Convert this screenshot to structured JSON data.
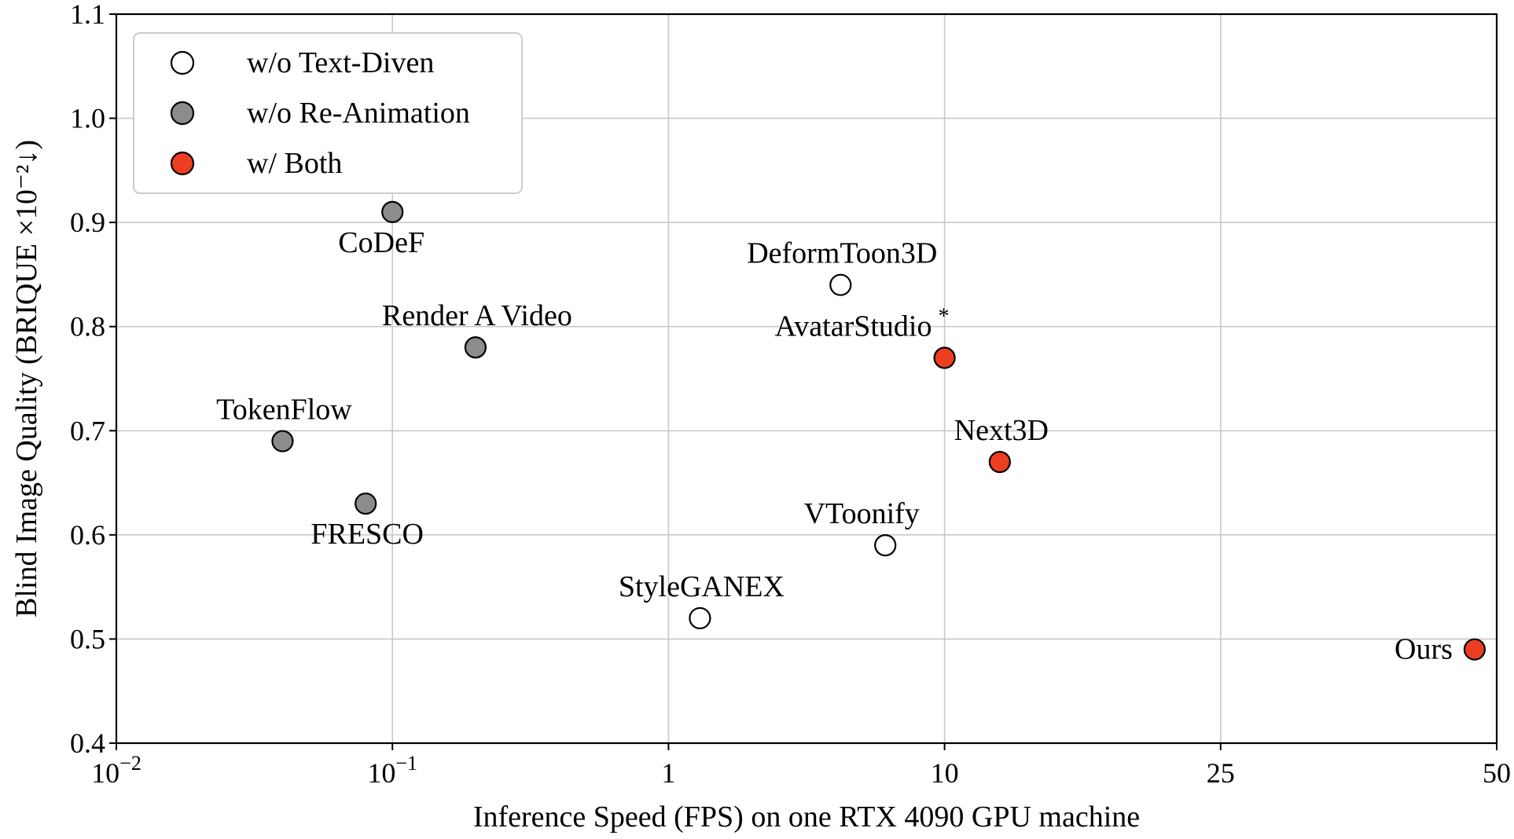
{
  "chart_data": {
    "type": "scatter",
    "xlabel": "Inference Speed (FPS) on one RTX 4090 GPU machine",
    "ylabel": "Blind Image Quality (BRIQUE ×10⁻²↓)",
    "x_scale": "categorical-ticks",
    "x_ticks": [
      {
        "label": "10",
        "sup": "−2"
      },
      {
        "label": "10",
        "sup": "−1"
      },
      {
        "label": "1",
        "sup": ""
      },
      {
        "label": "10",
        "sup": ""
      },
      {
        "label": "25",
        "sup": ""
      },
      {
        "label": "50",
        "sup": ""
      }
    ],
    "ylim": [
      0.4,
      1.1
    ],
    "y_ticks": [
      "0.4",
      "0.5",
      "0.6",
      "0.7",
      "0.8",
      "0.9",
      "1.0",
      "1.1"
    ],
    "grid": true,
    "legend_position": "top-left",
    "series": [
      {
        "name": "w/o Text-Diven",
        "color": "#ffffff",
        "points": [
          {
            "label": "DeformToon3D",
            "x": 4.2,
            "y": 0.84
          },
          {
            "label": "VToonify",
            "x": 6.1,
            "y": 0.59
          },
          {
            "label": "StyleGANEX",
            "x": 1.3,
            "y": 0.52
          }
        ]
      },
      {
        "name": "w/o Re-Animation",
        "color": "#8c8c8c",
        "points": [
          {
            "label": "CoDeF",
            "x": 0.1,
            "y": 0.91
          },
          {
            "label": "Render A Video",
            "x": 0.2,
            "y": 0.78
          },
          {
            "label": "TokenFlow",
            "x": 0.04,
            "y": 0.69
          },
          {
            "label": "FRESCO",
            "x": 0.08,
            "y": 0.63
          }
        ]
      },
      {
        "name": "w/ Both",
        "color": "#ee3e22",
        "points": [
          {
            "label": "AvatarStudio",
            "label_sup": "*",
            "x": 10,
            "y": 0.77
          },
          {
            "label": "Next3D",
            "x": 13,
            "y": 0.67
          },
          {
            "label": "Ours",
            "x": 48,
            "y": 0.49
          }
        ]
      }
    ]
  }
}
